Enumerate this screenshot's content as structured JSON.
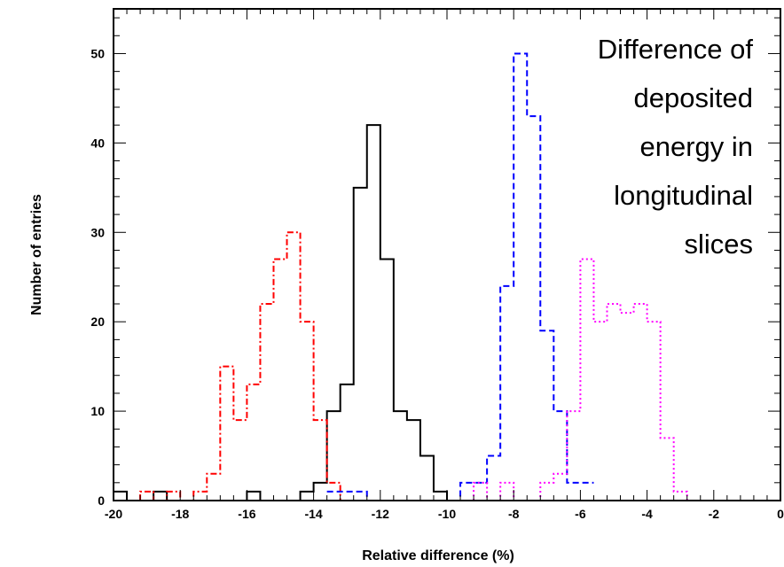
{
  "chart_data": {
    "type": "histogram",
    "xlabel": "Relative difference (%)",
    "ylabel": "Number of entries",
    "annotation": [
      "Difference of",
      "deposited",
      "energy in",
      "longitudinal",
      "slices"
    ],
    "xlim": [
      -20,
      0
    ],
    "ylim": [
      0,
      55
    ],
    "bin_width": 0.4,
    "x_ticks": [
      -20,
      -18,
      -16,
      -14,
      -12,
      -10,
      -8,
      -6,
      -4,
      -2,
      0
    ],
    "y_ticks": [
      0,
      10,
      20,
      30,
      40,
      50
    ],
    "series": [
      {
        "color": "#000000",
        "line_style": "solid",
        "edges": [
          -20.0,
          -19.6,
          -19.2,
          -18.8,
          -18.4,
          -18.0,
          -17.6,
          -17.2,
          -16.8,
          -16.4,
          -16.0,
          -15.6,
          -15.2,
          -14.8,
          -14.4,
          -14.0,
          -13.6,
          -13.2,
          -12.8,
          -12.4,
          -12.0,
          -11.6,
          -11.2,
          -10.8,
          -10.4,
          -10.0
        ],
        "counts": [
          1,
          0,
          0,
          1,
          0,
          0,
          0,
          0,
          0,
          0,
          1,
          0,
          0,
          0,
          1,
          2,
          10,
          13,
          35,
          42,
          27,
          10,
          9,
          5,
          1,
          0
        ]
      },
      {
        "color": "#ff0000",
        "line_style": "dashdot",
        "edges": [
          -19.6,
          -19.2,
          -18.8,
          -18.4,
          -18.0,
          -17.6,
          -17.2,
          -16.8,
          -16.4,
          -16.0,
          -15.6,
          -15.2,
          -14.8,
          -14.4,
          -14.0,
          -13.6,
          -13.2,
          -12.8
        ],
        "counts": [
          0,
          1,
          0,
          1,
          0,
          1,
          3,
          15,
          9,
          13,
          22,
          27,
          30,
          20,
          9,
          2,
          0
        ]
      },
      {
        "color": "#0000ff",
        "line_style": "dashed",
        "edges": [
          -13.6,
          -13.2,
          -12.8,
          -12.4,
          -12.0,
          -11.6,
          -11.2,
          -10.8,
          -10.4,
          -10.0,
          -9.6,
          -9.2,
          -8.8,
          -8.4,
          -8.0,
          -7.6,
          -7.2,
          -6.8,
          -6.4,
          -6.0,
          -5.6
        ],
        "counts": [
          1,
          1,
          1,
          0,
          0,
          0,
          0,
          0,
          0,
          0,
          2,
          2,
          5,
          24,
          50,
          43,
          19,
          10,
          2,
          2
        ]
      },
      {
        "color": "#ff00ff",
        "line_style": "dotted",
        "edges": [
          -10.0,
          -9.6,
          -9.2,
          -8.8,
          -8.4,
          -8.0,
          -7.6,
          -7.2,
          -6.8,
          -6.4,
          -6.0,
          -5.6,
          -5.2,
          -4.8,
          -4.4,
          -4.0,
          -3.6,
          -3.2,
          -2.8,
          -2.4
        ],
        "counts": [
          0,
          0,
          2,
          0,
          2,
          0,
          0,
          2,
          3,
          10,
          27,
          20,
          22,
          21,
          22,
          20,
          7,
          1,
          0
        ]
      }
    ]
  }
}
